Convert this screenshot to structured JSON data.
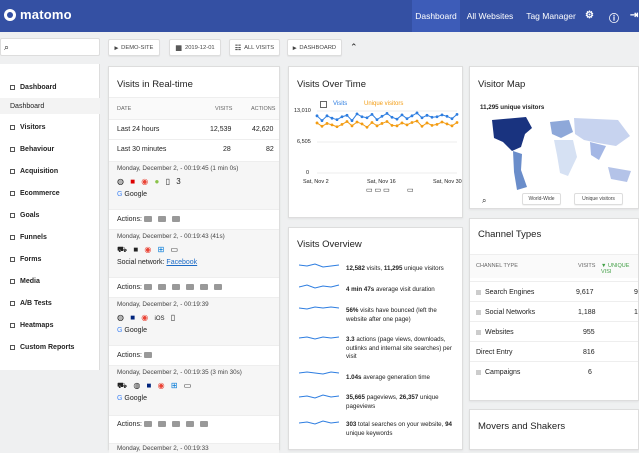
{
  "topbar": {
    "brand": "matomo",
    "nav": [
      "Dashboard",
      "All Websites",
      "Tag Manager"
    ],
    "icons": [
      "gear-icon",
      "help-icon",
      "logout-icon"
    ]
  },
  "controls": {
    "site": "DEMO-SITE",
    "date": "2019-12-01",
    "segment": "ALL VISITS",
    "dashboard": "DASHBOARD"
  },
  "sidebar": {
    "items": [
      "Dashboard",
      "Visitors",
      "Behaviour",
      "Acquisition",
      "Ecommerce",
      "Goals",
      "Funnels",
      "Forms",
      "Media",
      "A/B Tests",
      "Heatmaps",
      "Custom Reports"
    ],
    "sub": "Dashboard"
  },
  "realtime": {
    "title": "Visits in Real-time",
    "headers": [
      "DATE",
      "VISITS",
      "ACTIONS"
    ],
    "rows": [
      {
        "label": "Last 24 hours",
        "visits": "12,539",
        "actions": "42,620"
      },
      {
        "label": "Last 30 minutes",
        "visits": "28",
        "actions": "82"
      }
    ],
    "visits": [
      {
        "time": "Monday, December 2, - 00:19:45 (1 min 0s)",
        "source": "Google",
        "count": "3"
      },
      {
        "time": "Monday, December 2, - 00:19:43 (41s)",
        "source": "Social network:",
        "link": "Facebook"
      },
      {
        "time": "Monday, December 2, - 00:19:39",
        "source": "Google",
        "os": "iOS"
      },
      {
        "time": "Monday, December 2, - 00:19:35 (3 min 30s)",
        "source": "Google"
      },
      {
        "time": "Monday, December 2, - 00:19:33"
      }
    ],
    "actions_label": "Actions:"
  },
  "visits_over_time": {
    "title": "Visits Over Time",
    "legend": [
      "Visits",
      "Unique visitors"
    ],
    "yticks": [
      "13,010",
      "6,505",
      "0"
    ],
    "xticks": [
      "Sat, Nov 2",
      "Sat, Nov 16",
      "Sat, Nov 30"
    ]
  },
  "chart_data": {
    "type": "line",
    "series": [
      {
        "name": "Visits",
        "values": [
          12000,
          11000,
          12000,
          11500,
          11200,
          11800,
          12100,
          11000,
          12400,
          11800,
          11600,
          12300,
          11200,
          11900,
          12500,
          11700,
          11300,
          12200,
          11400,
          12000,
          12600,
          11600,
          12100,
          11700,
          11800,
          12200,
          11900,
          11400,
          12300
        ]
      },
      {
        "name": "Unique visitors",
        "values": [
          10500,
          9800,
          10400,
          10100,
          9700,
          10200,
          10800,
          9900,
          10700,
          10300,
          9600,
          10600,
          9900,
          10400,
          10800,
          10000,
          9900,
          10500,
          10100,
          10600,
          10900,
          9800,
          10500,
          10000,
          10200,
          10700,
          10300,
          9900,
          10600
        ]
      }
    ],
    "xlabel": "",
    "ylabel": "",
    "ylim": [
      0,
      13010
    ]
  },
  "visitor_map": {
    "title": "Visitor Map",
    "label": "11,295 unique visitors",
    "select1": "World-Wide",
    "select2": "Unique visitors"
  },
  "overview": {
    "title": "Visits Overview",
    "stats": [
      {
        "bold": "12,582",
        "text": " visits, ",
        "bold2": "11,295",
        "text2": " unique visitors"
      },
      {
        "bold": "4 min 47s",
        "text": " average visit duration"
      },
      {
        "bold": "56%",
        "text": " visits have bounced (left the website after one page)"
      },
      {
        "bold": "3.3",
        "text": " actions (page views, downloads, outlinks and internal site searches) per visit"
      },
      {
        "bold": "1.04s",
        "text": " average generation time"
      },
      {
        "bold": "35,665",
        "text": " pageviews, ",
        "bold2": "26,357",
        "text2": " unique pageviews"
      },
      {
        "bold": "303",
        "text": " total searches on your website, ",
        "bold2": "94",
        "text2": " unique keywords"
      }
    ]
  },
  "channels": {
    "title": "Channel Types",
    "headers": [
      "CHANNEL TYPE",
      "VISITS",
      "UNIQUE VISI"
    ],
    "rows": [
      {
        "label": "Search Engines",
        "visits": "9,617",
        "uniq": "9"
      },
      {
        "label": "Social Networks",
        "visits": "1,188",
        "uniq": "1"
      },
      {
        "label": "Websites",
        "visits": "955",
        "uniq": ""
      },
      {
        "label": "Direct Entry",
        "visits": "816",
        "uniq": ""
      },
      {
        "label": "Campaigns",
        "visits": "6",
        "uniq": ""
      }
    ]
  },
  "movers": {
    "title": "Movers and Shakers"
  }
}
